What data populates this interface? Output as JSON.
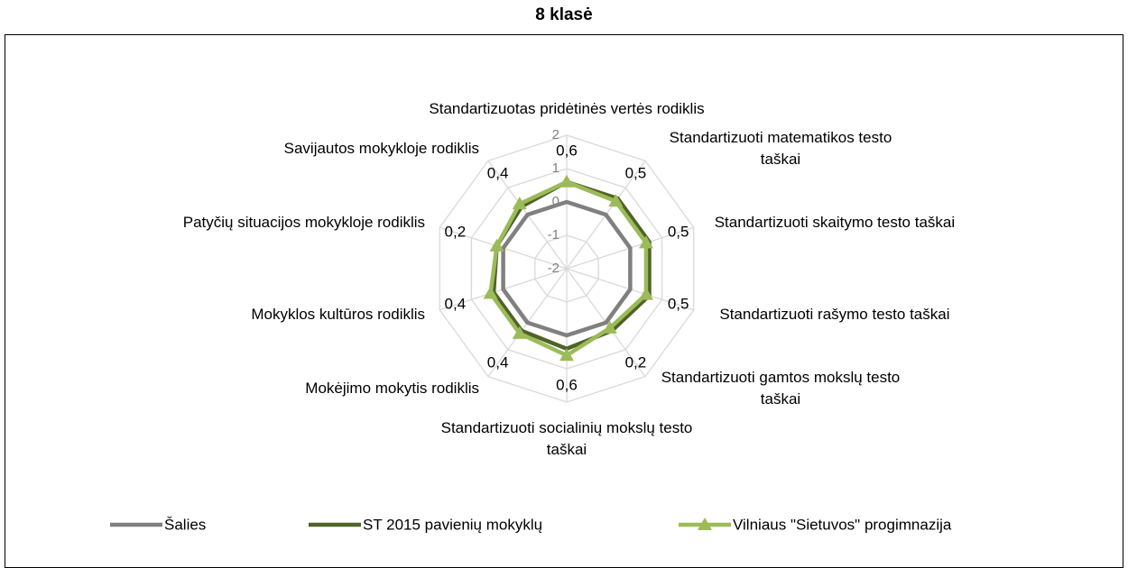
{
  "chart_data": {
    "type": "radar",
    "title": "8 klasė",
    "categories": [
      "Standartizuotas pridėtinės vertės rodiklis",
      "Standartizuoti matematikos testo taškai",
      "Standartizuoti skaitymo testo taškai",
      "Standartizuoti rašymo testo taškai",
      "Standartizuoti gamtos mokslų testo taškai",
      "Standartizuoti socialinių mokslų testo taškai",
      "Mokėjimo mokytis rodiklis",
      "Mokyklos kultūros rodiklis",
      "Patyčių situacijos mokykloje rodiklis",
      "Savijautos mokykloje rodiklis"
    ],
    "series": [
      {
        "name": "Šalies",
        "color": "#808080",
        "values": [
          0,
          0,
          0,
          0,
          0,
          0,
          0,
          0,
          0,
          0
        ]
      },
      {
        "name": "ST 2015 pavienių mokyklų",
        "color": "#4f6228",
        "values": [
          0.6,
          0.6,
          0.6,
          0.6,
          0.3,
          0.4,
          0.3,
          0.3,
          0.2,
          0.3
        ]
      },
      {
        "name": "Vilniaus \"Sietuvos\" progimnazija",
        "color": "#9bbb59",
        "marker": "triangle",
        "values": [
          0.6,
          0.5,
          0.5,
          0.5,
          0.2,
          0.6,
          0.4,
          0.4,
          0.2,
          0.4
        ],
        "value_labels": [
          "0,6",
          "0,5",
          "0,5",
          "0,5",
          "0,2",
          "0,6",
          "0,4",
          "0,4",
          "0,2",
          "0,4"
        ]
      }
    ],
    "ylim": [
      -2,
      2
    ],
    "yticks": [
      -2,
      -1,
      0,
      1,
      2
    ],
    "grid": true,
    "legend": "bottom"
  }
}
